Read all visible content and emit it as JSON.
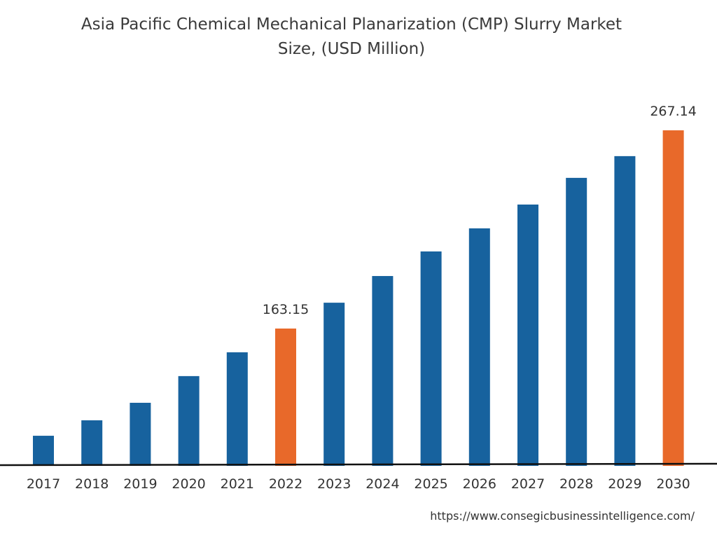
{
  "chart_data": {
    "type": "bar",
    "title": "Asia Pacific Chemical Mechanical Planarization (CMP) Slurry Market Size, (USD Million)",
    "title_lines": [
      "Asia Pacific Chemical Mechanical Planarization (CMP) Slurry Market",
      "Size, (USD Million)"
    ],
    "xlabel": "",
    "ylabel": "",
    "categories": [
      "2017",
      "2018",
      "2019",
      "2020",
      "2021",
      "2022",
      "2023",
      "2024",
      "2025",
      "2026",
      "2027",
      "2028",
      "2029",
      "2030"
    ],
    "values": [
      106.9,
      115.0,
      124.2,
      138.2,
      150.7,
      163.15,
      176.7,
      190.7,
      203.6,
      215.7,
      228.2,
      242.2,
      253.6,
      267.14
    ],
    "data_labels": {
      "2022": "163.15",
      "2030": "267.14"
    },
    "colors": {
      "default": "#17629e",
      "highlight": "#e8692a"
    },
    "highlighted": [
      "2022",
      "2030"
    ],
    "grid": false,
    "legend": "none"
  },
  "source_url": "https://www.consegicbusinessintelligence.com/"
}
